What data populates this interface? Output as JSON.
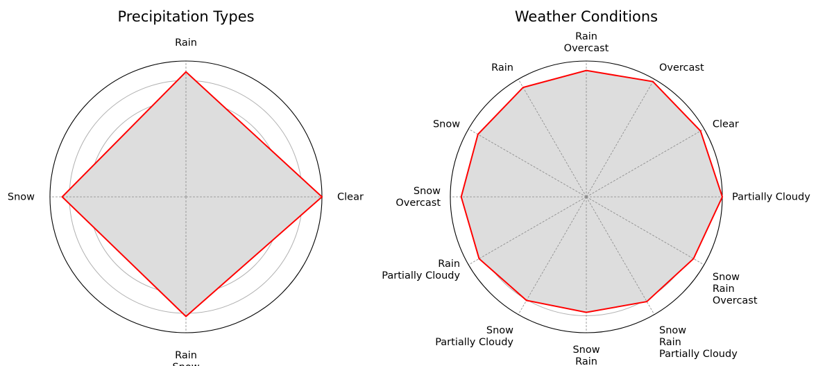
{
  "chart_data": [
    {
      "type": "radar",
      "title": "Precipitation Types",
      "categories": [
        "Clear",
        "Rain",
        "Snow",
        "Rain\nSnow"
      ],
      "values": [
        1.0,
        0.92,
        0.91,
        0.88
      ],
      "rlim": [
        0,
        1.0
      ],
      "rings": 7,
      "grid": true,
      "colors": {
        "line": "#ff0000",
        "fill": "#dddddd"
      }
    },
    {
      "type": "radar",
      "title": "Weather Conditions",
      "categories": [
        "Partially Cloudy",
        "Clear",
        "Overcast",
        "Rain\nOvercast",
        "Rain",
        "Snow",
        "Snow\nOvercast",
        "Rain\nPartially Cloudy",
        "Snow\nPartially Cloudy",
        "Snow\nRain",
        "Snow\nRain\nPartially Cloudy",
        "Snow\nRain\nOvercast"
      ],
      "values": [
        1.0,
        0.97,
        0.98,
        0.93,
        0.93,
        0.92,
        0.92,
        0.91,
        0.88,
        0.85,
        0.89,
        0.91
      ],
      "rlim": [
        0,
        1.0
      ],
      "rings": 8,
      "grid": true,
      "colors": {
        "line": "#ff0000",
        "fill": "#dddddd"
      }
    }
  ]
}
